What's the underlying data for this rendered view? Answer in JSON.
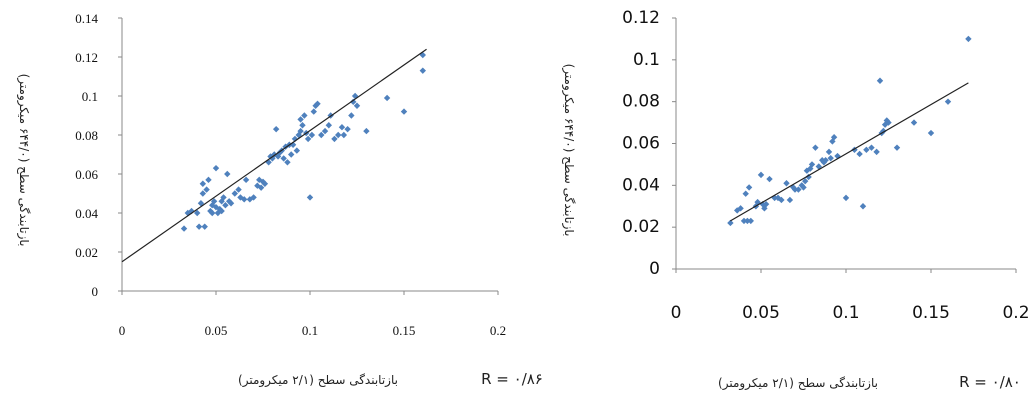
{
  "chart_data": [
    {
      "type": "scatter",
      "ylabel": "بازتابندگی سطح (۶۴۴/۰ میکرومتر)",
      "xlabel": "بازتابندگی سطح (۲/۱ میکرومتر)",
      "r_label": "R = ۰/۸۶",
      "xlim": [
        0,
        0.2
      ],
      "ylim": [
        0,
        0.14
      ],
      "x_ticks": [
        "0",
        "0.05",
        "0.1",
        "0.15",
        "0.2"
      ],
      "y_ticks": [
        "0",
        "0.02",
        "0.04",
        "0.06",
        "0.08",
        "0.1",
        "0.12",
        "0.14"
      ],
      "marker_color": "#4f81bd",
      "trendline": {
        "x": [
          0,
          0.162
        ],
        "y": [
          0.015,
          0.124
        ]
      },
      "points": [
        [
          0.033,
          0.032
        ],
        [
          0.035,
          0.04
        ],
        [
          0.037,
          0.041
        ],
        [
          0.04,
          0.04
        ],
        [
          0.041,
          0.033
        ],
        [
          0.042,
          0.045
        ],
        [
          0.043,
          0.05
        ],
        [
          0.043,
          0.055
        ],
        [
          0.044,
          0.033
        ],
        [
          0.045,
          0.052
        ],
        [
          0.046,
          0.057
        ],
        [
          0.047,
          0.041
        ],
        [
          0.048,
          0.044
        ],
        [
          0.048,
          0.04
        ],
        [
          0.049,
          0.046
        ],
        [
          0.05,
          0.063
        ],
        [
          0.05,
          0.043
        ],
        [
          0.051,
          0.04
        ],
        [
          0.052,
          0.042
        ],
        [
          0.053,
          0.046
        ],
        [
          0.053,
          0.041
        ],
        [
          0.054,
          0.048
        ],
        [
          0.055,
          0.044
        ],
        [
          0.056,
          0.06
        ],
        [
          0.057,
          0.046
        ],
        [
          0.058,
          0.045
        ],
        [
          0.06,
          0.05
        ],
        [
          0.062,
          0.052
        ],
        [
          0.063,
          0.048
        ],
        [
          0.065,
          0.047
        ],
        [
          0.066,
          0.057
        ],
        [
          0.068,
          0.047
        ],
        [
          0.07,
          0.048
        ],
        [
          0.072,
          0.054
        ],
        [
          0.073,
          0.057
        ],
        [
          0.074,
          0.053
        ],
        [
          0.075,
          0.056
        ],
        [
          0.076,
          0.055
        ],
        [
          0.078,
          0.066
        ],
        [
          0.079,
          0.069
        ],
        [
          0.08,
          0.068
        ],
        [
          0.081,
          0.07
        ],
        [
          0.082,
          0.083
        ],
        [
          0.083,
          0.069
        ],
        [
          0.084,
          0.071
        ],
        [
          0.085,
          0.072
        ],
        [
          0.086,
          0.068
        ],
        [
          0.087,
          0.074
        ],
        [
          0.088,
          0.066
        ],
        [
          0.089,
          0.075
        ],
        [
          0.09,
          0.07
        ],
        [
          0.091,
          0.075
        ],
        [
          0.092,
          0.078
        ],
        [
          0.093,
          0.072
        ],
        [
          0.094,
          0.08
        ],
        [
          0.095,
          0.082
        ],
        [
          0.095,
          0.088
        ],
        [
          0.096,
          0.085
        ],
        [
          0.097,
          0.09
        ],
        [
          0.098,
          0.081
        ],
        [
          0.099,
          0.078
        ],
        [
          0.1,
          0.048
        ],
        [
          0.101,
          0.08
        ],
        [
          0.102,
          0.092
        ],
        [
          0.103,
          0.095
        ],
        [
          0.104,
          0.096
        ],
        [
          0.106,
          0.08
        ],
        [
          0.108,
          0.082
        ],
        [
          0.11,
          0.085
        ],
        [
          0.111,
          0.09
        ],
        [
          0.113,
          0.078
        ],
        [
          0.115,
          0.08
        ],
        [
          0.117,
          0.084
        ],
        [
          0.118,
          0.08
        ],
        [
          0.12,
          0.083
        ],
        [
          0.122,
          0.09
        ],
        [
          0.123,
          0.097
        ],
        [
          0.124,
          0.1
        ],
        [
          0.125,
          0.095
        ],
        [
          0.13,
          0.082
        ],
        [
          0.141,
          0.099
        ],
        [
          0.15,
          0.092
        ],
        [
          0.16,
          0.121
        ],
        [
          0.16,
          0.113
        ]
      ]
    },
    {
      "type": "scatter",
      "ylabel": "بازتابندگی سطح (۶۴۴/۰ میکرومتر)",
      "xlabel": "بازتابندگی سطح (۲/۱ میکرومتر)",
      "r_label": "R = ۰/۸۰",
      "xlim": [
        0,
        0.2
      ],
      "ylim": [
        0,
        0.12
      ],
      "x_ticks": [
        "0",
        "0.05",
        "0.1",
        "0.15",
        "0.2"
      ],
      "y_ticks": [
        "0",
        "0.02",
        "0.04",
        "0.06",
        "0.08",
        "0.1",
        "0.12"
      ],
      "marker_color": "#4f81bd",
      "trendline": {
        "x": [
          0.032,
          0.172
        ],
        "y": [
          0.023,
          0.089
        ]
      },
      "points": [
        [
          0.032,
          0.022
        ],
        [
          0.036,
          0.028
        ],
        [
          0.038,
          0.029
        ],
        [
          0.04,
          0.023
        ],
        [
          0.041,
          0.036
        ],
        [
          0.042,
          0.023
        ],
        [
          0.043,
          0.039
        ],
        [
          0.044,
          0.023
        ],
        [
          0.047,
          0.03
        ],
        [
          0.048,
          0.032
        ],
        [
          0.05,
          0.045
        ],
        [
          0.051,
          0.031
        ],
        [
          0.052,
          0.029
        ],
        [
          0.053,
          0.031
        ],
        [
          0.055,
          0.043
        ],
        [
          0.058,
          0.034
        ],
        [
          0.06,
          0.034
        ],
        [
          0.062,
          0.033
        ],
        [
          0.065,
          0.041
        ],
        [
          0.067,
          0.033
        ],
        [
          0.069,
          0.039
        ],
        [
          0.07,
          0.038
        ],
        [
          0.072,
          0.038
        ],
        [
          0.074,
          0.04
        ],
        [
          0.075,
          0.039
        ],
        [
          0.076,
          0.042
        ],
        [
          0.077,
          0.047
        ],
        [
          0.078,
          0.044
        ],
        [
          0.079,
          0.048
        ],
        [
          0.08,
          0.05
        ],
        [
          0.082,
          0.058
        ],
        [
          0.084,
          0.049
        ],
        [
          0.086,
          0.052
        ],
        [
          0.087,
          0.051
        ],
        [
          0.088,
          0.052
        ],
        [
          0.09,
          0.056
        ],
        [
          0.091,
          0.053
        ],
        [
          0.092,
          0.061
        ],
        [
          0.093,
          0.063
        ],
        [
          0.095,
          0.054
        ],
        [
          0.1,
          0.034
        ],
        [
          0.105,
          0.057
        ],
        [
          0.108,
          0.055
        ],
        [
          0.11,
          0.03
        ],
        [
          0.112,
          0.057
        ],
        [
          0.115,
          0.058
        ],
        [
          0.118,
          0.056
        ],
        [
          0.12,
          0.09
        ],
        [
          0.121,
          0.065
        ],
        [
          0.122,
          0.066
        ],
        [
          0.123,
          0.069
        ],
        [
          0.124,
          0.071
        ],
        [
          0.125,
          0.07
        ],
        [
          0.13,
          0.058
        ],
        [
          0.14,
          0.07
        ],
        [
          0.15,
          0.065
        ],
        [
          0.16,
          0.08
        ],
        [
          0.172,
          0.11
        ]
      ]
    }
  ]
}
